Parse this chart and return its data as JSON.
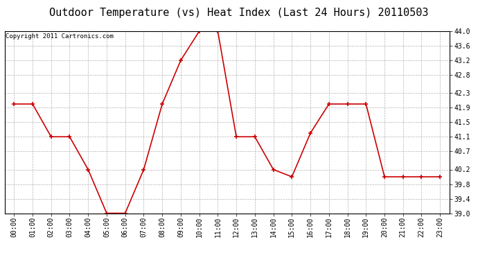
{
  "title": "Outdoor Temperature (vs) Heat Index (Last 24 Hours) 20110503",
  "copyright_text": "Copyright 2011 Cartronics.com",
  "hours": [
    "00:00",
    "01:00",
    "02:00",
    "03:00",
    "04:00",
    "05:00",
    "06:00",
    "07:00",
    "08:00",
    "09:00",
    "10:00",
    "11:00",
    "12:00",
    "13:00",
    "14:00",
    "15:00",
    "16:00",
    "17:00",
    "18:00",
    "19:00",
    "20:00",
    "21:00",
    "22:00",
    "23:00"
  ],
  "values": [
    42.0,
    42.0,
    41.1,
    41.1,
    40.2,
    39.0,
    39.0,
    40.2,
    42.0,
    43.2,
    44.0,
    44.0,
    41.1,
    41.1,
    40.2,
    40.0,
    41.2,
    42.0,
    42.0,
    42.0,
    40.0,
    40.0,
    40.0,
    40.0
  ],
  "line_color": "#cc0000",
  "marker_color": "#cc0000",
  "bg_color": "#ffffff",
  "plot_bg_color": "#ffffff",
  "grid_color": "#aaaaaa",
  "title_fontsize": 11,
  "copyright_fontsize": 6.5,
  "tick_fontsize": 7,
  "ylim_min": 39.0,
  "ylim_max": 44.0,
  "ytick_values": [
    39.0,
    39.4,
    39.8,
    40.2,
    40.7,
    41.1,
    41.5,
    41.9,
    42.3,
    42.8,
    43.2,
    43.6,
    44.0
  ]
}
